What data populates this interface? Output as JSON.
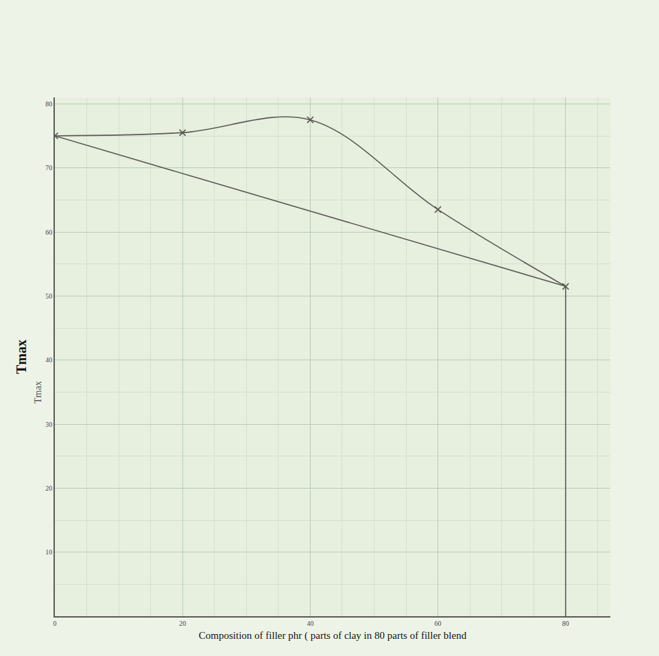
{
  "chart_data": {
    "type": "line",
    "x_label": "Composition of filler phr ( parts of clay in 80 parts of filler blend",
    "y_label": "Tmax",
    "annotations": [
      {
        "text": "Tmax",
        "y": 35
      }
    ],
    "series": [
      {
        "x": [
          0,
          20,
          40,
          60,
          80
        ],
        "values": [
          75,
          75.5,
          77.5,
          63.5,
          51.5
        ],
        "color": "#5a5a55",
        "marker": "x",
        "line_style": "spline"
      },
      {
        "x": [
          0,
          80
        ],
        "values": [
          75,
          51.5
        ],
        "color": "#5a5a55",
        "line_style": "solid"
      },
      {
        "x": [
          80,
          80
        ],
        "values": [
          0,
          51.5
        ],
        "color": "#5a5a55",
        "line_style": "solid"
      }
    ],
    "xlim": [
      0,
      87
    ],
    "ylim": [
      0,
      81
    ],
    "xticks": [
      0,
      20,
      40,
      60,
      80
    ],
    "yticks": [
      10,
      20,
      30,
      40,
      50,
      60,
      70,
      80
    ],
    "grid": true
  }
}
